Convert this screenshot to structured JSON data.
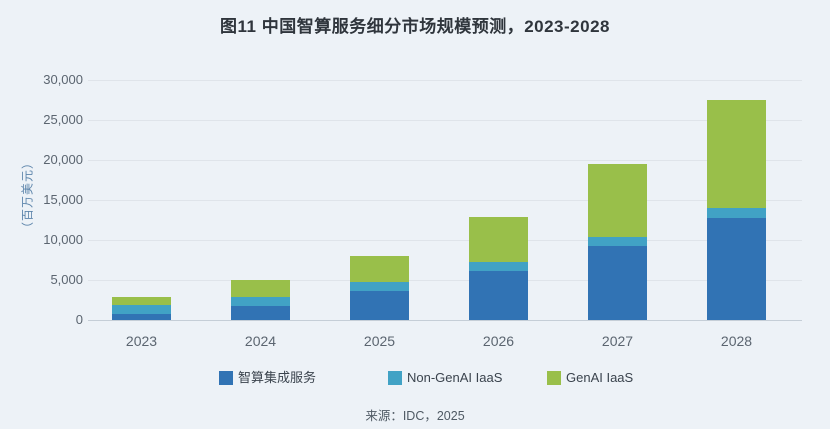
{
  "page": {
    "background": "#edf2f7"
  },
  "chart_data": {
    "type": "bar",
    "stacked": true,
    "title": "图11 中国智算服务细分市场规模预测，2023-2028",
    "ylabel": "（百万美元）",
    "source": "来源：IDC，2025",
    "categories": [
      "2023",
      "2024",
      "2025",
      "2026",
      "2027",
      "2028"
    ],
    "series": [
      {
        "name": "智算集成服务",
        "color": "#3173b4",
        "values": [
          800,
          1750,
          3650,
          6150,
          9250,
          12700
        ]
      },
      {
        "name": "Non-GenAI IaaS",
        "color": "#41a2c5",
        "values": [
          1100,
          1150,
          1100,
          1100,
          1150,
          1250
        ]
      },
      {
        "name": "GenAI IaaS",
        "color": "#99bf4a",
        "values": [
          950,
          2100,
          3300,
          5600,
          9150,
          13550
        ]
      }
    ],
    "totals": [
      2850,
      5000,
      8050,
      12850,
      19550,
      27500
    ],
    "ylim": [
      0,
      30000
    ],
    "ytick_values": [
      0,
      5000,
      10000,
      15000,
      20000,
      25000,
      30000
    ],
    "ytick_labels": [
      "0",
      "5,000",
      "10,000",
      "15,000",
      "20,000",
      "25,000",
      "30,000"
    ],
    "grid": true,
    "legend_position": "bottom"
  }
}
